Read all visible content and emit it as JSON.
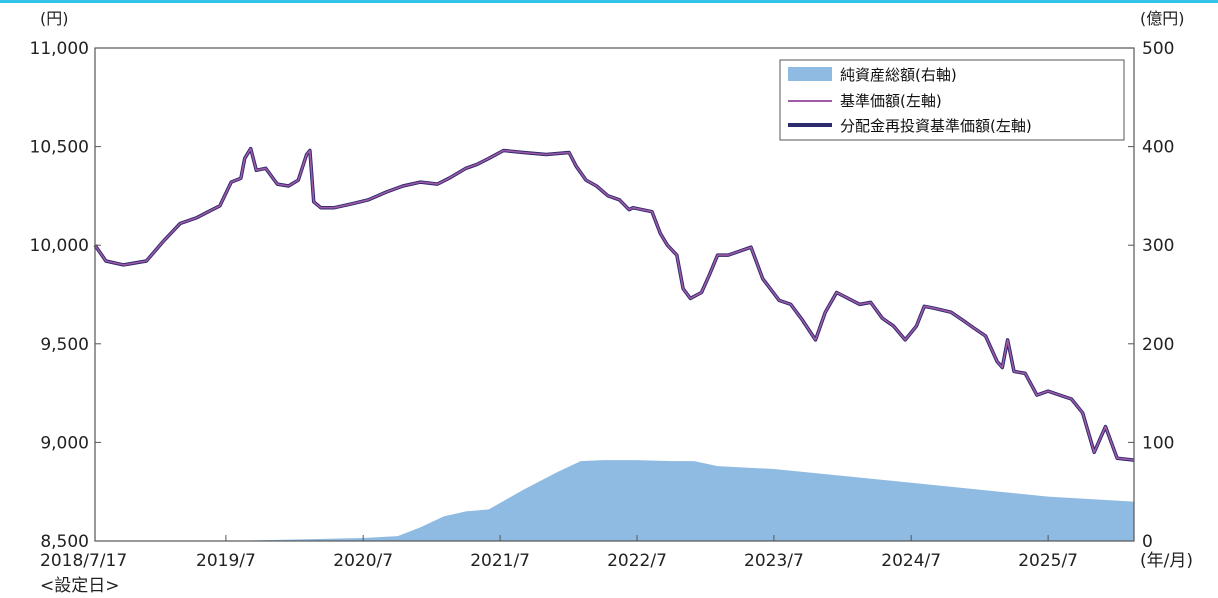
{
  "chart_data": {
    "type": "line",
    "left_axis_unit": "(円)",
    "right_axis_unit": "(億円)",
    "x_axis_unit": "(年/月)",
    "left_ylim": [
      8500,
      11000
    ],
    "right_ylim": [
      0,
      500
    ],
    "left_ticks": [
      "11,000",
      "10,500",
      "10,000",
      "9,500",
      "9,000",
      "8,500"
    ],
    "right_ticks": [
      "500",
      "400",
      "300",
      "200",
      "100",
      "0"
    ],
    "x_ticks": [
      "2018/7/17",
      "2019/7",
      "2020/7",
      "2021/7",
      "2022/7",
      "2023/7",
      "2024/7",
      "2025/7"
    ],
    "x_start_note": "<設定日>",
    "x_range": [
      "2018-07-17",
      "2026-02-15"
    ],
    "legend": {
      "placement": "top-right",
      "items": [
        "純資産総額(右軸)",
        "基準価額(左軸)",
        "分配金再投資基準価額(左軸)"
      ]
    },
    "colors": {
      "net_assets": "#8fbbe2",
      "nav": "#a05aa6",
      "reinvested_nav": "#2e2a6e",
      "frame": "#555555",
      "accent_line": "#34c3e6"
    },
    "series": [
      {
        "name": "純資産総額(右軸)",
        "axis": "right",
        "kind": "area",
        "points": [
          [
            "2018-07-17",
            0
          ],
          [
            "2019-07-01",
            0
          ],
          [
            "2019-11-01",
            1
          ],
          [
            "2020-07-01",
            3
          ],
          [
            "2020-10-01",
            5
          ],
          [
            "2020-12-01",
            14
          ],
          [
            "2021-02-01",
            25
          ],
          [
            "2021-04-01",
            30
          ],
          [
            "2021-06-01",
            32
          ],
          [
            "2021-09-01",
            52
          ],
          [
            "2021-12-01",
            70
          ],
          [
            "2022-02-01",
            81
          ],
          [
            "2022-04-01",
            82
          ],
          [
            "2022-07-01",
            82
          ],
          [
            "2022-10-01",
            81
          ],
          [
            "2022-12-01",
            81
          ],
          [
            "2023-02-01",
            76
          ],
          [
            "2023-07-01",
            73
          ],
          [
            "2024-01-01",
            66
          ],
          [
            "2024-07-01",
            59
          ],
          [
            "2025-01-01",
            52
          ],
          [
            "2025-07-01",
            45
          ],
          [
            "2026-02-15",
            40
          ]
        ]
      },
      {
        "name": "基準価額(左軸)",
        "axis": "left",
        "kind": "line",
        "points": [
          [
            "2018-07-17",
            10000
          ],
          [
            "2018-08-15",
            9920
          ],
          [
            "2018-10-01",
            9900
          ],
          [
            "2018-12-01",
            9920
          ],
          [
            "2019-01-15",
            10020
          ],
          [
            "2019-03-01",
            10110
          ],
          [
            "2019-04-15",
            10140
          ],
          [
            "2019-05-15",
            10170
          ],
          [
            "2019-06-15",
            10200
          ],
          [
            "2019-07-15",
            10320
          ],
          [
            "2019-08-10",
            10340
          ],
          [
            "2019-08-20",
            10440
          ],
          [
            "2019-09-05",
            10490
          ],
          [
            "2019-09-20",
            10380
          ],
          [
            "2019-10-15",
            10390
          ],
          [
            "2019-11-15",
            10310
          ],
          [
            "2019-12-15",
            10300
          ],
          [
            "2020-01-10",
            10330
          ],
          [
            "2020-02-01",
            10460
          ],
          [
            "2020-02-10",
            10480
          ],
          [
            "2020-02-20",
            10220
          ],
          [
            "2020-03-10",
            10190
          ],
          [
            "2020-04-15",
            10190
          ],
          [
            "2020-06-01",
            10210
          ],
          [
            "2020-07-15",
            10230
          ],
          [
            "2020-09-01",
            10270
          ],
          [
            "2020-10-15",
            10300
          ],
          [
            "2020-12-01",
            10320
          ],
          [
            "2021-01-15",
            10310
          ],
          [
            "2021-02-15",
            10340
          ],
          [
            "2021-04-01",
            10390
          ],
          [
            "2021-05-01",
            10410
          ],
          [
            "2021-06-01",
            10440
          ],
          [
            "2021-07-10",
            10480
          ],
          [
            "2021-09-01",
            10470
          ],
          [
            "2021-11-01",
            10460
          ],
          [
            "2022-01-01",
            10470
          ],
          [
            "2022-01-20",
            10400
          ],
          [
            "2022-02-15",
            10330
          ],
          [
            "2022-03-15",
            10300
          ],
          [
            "2022-04-15",
            10250
          ],
          [
            "2022-05-15",
            10230
          ],
          [
            "2022-06-10",
            10180
          ],
          [
            "2022-06-20",
            10190
          ],
          [
            "2022-07-15",
            10180
          ],
          [
            "2022-08-10",
            10170
          ],
          [
            "2022-09-01",
            10060
          ],
          [
            "2022-09-20",
            10000
          ],
          [
            "2022-10-15",
            9950
          ],
          [
            "2022-11-01",
            9780
          ],
          [
            "2022-11-20",
            9730
          ],
          [
            "2022-12-20",
            9760
          ],
          [
            "2023-01-10",
            9850
          ],
          [
            "2023-02-01",
            9950
          ],
          [
            "2023-03-01",
            9950
          ],
          [
            "2023-04-01",
            9970
          ],
          [
            "2023-05-01",
            9990
          ],
          [
            "2023-06-01",
            9830
          ],
          [
            "2023-07-15",
            9720
          ],
          [
            "2023-08-15",
            9700
          ],
          [
            "2023-09-15",
            9620
          ],
          [
            "2023-10-20",
            9520
          ],
          [
            "2023-11-15",
            9660
          ],
          [
            "2023-12-15",
            9760
          ],
          [
            "2024-01-15",
            9730
          ],
          [
            "2024-02-15",
            9700
          ],
          [
            "2024-03-15",
            9710
          ],
          [
            "2024-04-15",
            9630
          ],
          [
            "2024-05-15",
            9590
          ],
          [
            "2024-06-15",
            9520
          ],
          [
            "2024-07-15",
            9590
          ],
          [
            "2024-08-05",
            9690
          ],
          [
            "2024-09-01",
            9680
          ],
          [
            "2024-10-15",
            9660
          ],
          [
            "2024-11-15",
            9620
          ],
          [
            "2024-12-15",
            9580
          ],
          [
            "2025-01-15",
            9540
          ],
          [
            "2025-02-15",
            9410
          ],
          [
            "2025-03-01",
            9380
          ],
          [
            "2025-03-15",
            9520
          ],
          [
            "2025-04-01",
            9360
          ],
          [
            "2025-05-01",
            9350
          ],
          [
            "2025-06-01",
            9240
          ],
          [
            "2025-07-01",
            9260
          ],
          [
            "2025-08-01",
            9240
          ],
          [
            "2025-09-01",
            9220
          ],
          [
            "2025-10-01",
            9150
          ],
          [
            "2025-11-01",
            8950
          ],
          [
            "2025-12-01",
            9080
          ],
          [
            "2026-01-01",
            8920
          ],
          [
            "2026-02-15",
            8910
          ]
        ]
      },
      {
        "name": "分配金再投資基準価額(左軸)",
        "axis": "left",
        "kind": "line",
        "points": [
          [
            "2018-07-17",
            10000
          ],
          [
            "2018-08-15",
            9920
          ],
          [
            "2018-10-01",
            9900
          ],
          [
            "2018-12-01",
            9920
          ],
          [
            "2019-01-15",
            10020
          ],
          [
            "2019-03-01",
            10110
          ],
          [
            "2019-04-15",
            10140
          ],
          [
            "2019-05-15",
            10170
          ],
          [
            "2019-06-15",
            10200
          ],
          [
            "2019-07-15",
            10320
          ],
          [
            "2019-08-10",
            10340
          ],
          [
            "2019-08-20",
            10440
          ],
          [
            "2019-09-05",
            10490
          ],
          [
            "2019-09-20",
            10380
          ],
          [
            "2019-10-15",
            10390
          ],
          [
            "2019-11-15",
            10310
          ],
          [
            "2019-12-15",
            10300
          ],
          [
            "2020-01-10",
            10330
          ],
          [
            "2020-02-01",
            10460
          ],
          [
            "2020-02-10",
            10480
          ],
          [
            "2020-02-20",
            10220
          ],
          [
            "2020-03-10",
            10190
          ],
          [
            "2020-04-15",
            10190
          ],
          [
            "2020-06-01",
            10210
          ],
          [
            "2020-07-15",
            10230
          ],
          [
            "2020-09-01",
            10270
          ],
          [
            "2020-10-15",
            10300
          ],
          [
            "2020-12-01",
            10320
          ],
          [
            "2021-01-15",
            10310
          ],
          [
            "2021-02-15",
            10340
          ],
          [
            "2021-04-01",
            10390
          ],
          [
            "2021-05-01",
            10410
          ],
          [
            "2021-06-01",
            10440
          ],
          [
            "2021-07-10",
            10480
          ],
          [
            "2021-09-01",
            10470
          ],
          [
            "2021-11-01",
            10460
          ],
          [
            "2022-01-01",
            10470
          ],
          [
            "2022-01-20",
            10400
          ],
          [
            "2022-02-15",
            10330
          ],
          [
            "2022-03-15",
            10300
          ],
          [
            "2022-04-15",
            10250
          ],
          [
            "2022-05-15",
            10230
          ],
          [
            "2022-06-10",
            10180
          ],
          [
            "2022-06-20",
            10190
          ],
          [
            "2022-07-15",
            10180
          ],
          [
            "2022-08-10",
            10170
          ],
          [
            "2022-09-01",
            10060
          ],
          [
            "2022-09-20",
            10000
          ],
          [
            "2022-10-15",
            9950
          ],
          [
            "2022-11-01",
            9780
          ],
          [
            "2022-11-20",
            9730
          ],
          [
            "2022-12-20",
            9760
          ],
          [
            "2023-01-10",
            9850
          ],
          [
            "2023-02-01",
            9950
          ],
          [
            "2023-03-01",
            9950
          ],
          [
            "2023-04-01",
            9970
          ],
          [
            "2023-05-01",
            9990
          ],
          [
            "2023-06-01",
            9830
          ],
          [
            "2023-07-15",
            9720
          ],
          [
            "2023-08-15",
            9700
          ],
          [
            "2023-09-15",
            9620
          ],
          [
            "2023-10-20",
            9520
          ],
          [
            "2023-11-15",
            9660
          ],
          [
            "2023-12-15",
            9760
          ],
          [
            "2024-01-15",
            9730
          ],
          [
            "2024-02-15",
            9700
          ],
          [
            "2024-03-15",
            9710
          ],
          [
            "2024-04-15",
            9630
          ],
          [
            "2024-05-15",
            9590
          ],
          [
            "2024-06-15",
            9520
          ],
          [
            "2024-07-15",
            9590
          ],
          [
            "2024-08-05",
            9690
          ],
          [
            "2024-09-01",
            9680
          ],
          [
            "2024-10-15",
            9660
          ],
          [
            "2024-11-15",
            9620
          ],
          [
            "2024-12-15",
            9580
          ],
          [
            "2025-01-15",
            9540
          ],
          [
            "2025-02-15",
            9410
          ],
          [
            "2025-03-01",
            9380
          ],
          [
            "2025-03-15",
            9520
          ],
          [
            "2025-04-01",
            9360
          ],
          [
            "2025-05-01",
            9350
          ],
          [
            "2025-06-01",
            9240
          ],
          [
            "2025-07-01",
            9260
          ],
          [
            "2025-08-01",
            9240
          ],
          [
            "2025-09-01",
            9220
          ],
          [
            "2025-10-01",
            9150
          ],
          [
            "2025-11-01",
            8950
          ],
          [
            "2025-12-01",
            9080
          ],
          [
            "2026-01-01",
            8920
          ],
          [
            "2026-02-15",
            8910
          ]
        ]
      }
    ]
  }
}
